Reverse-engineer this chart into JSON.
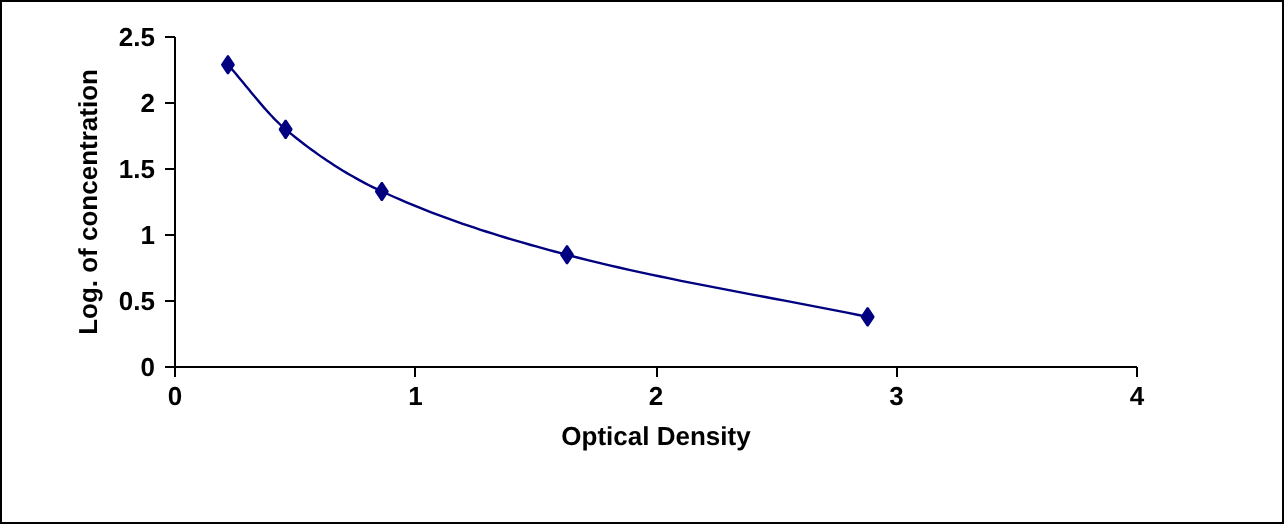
{
  "chart_data": {
    "type": "line",
    "xlabel": "Optical Density",
    "ylabel": "Log. of concentration",
    "x": [
      0.22,
      0.46,
      0.86,
      1.63,
      2.88
    ],
    "series": [
      {
        "color": "#000080",
        "values": [
          2.29,
          1.8,
          1.33,
          0.85,
          0.38
        ]
      }
    ],
    "xlim": [
      0,
      4
    ],
    "xticks": [
      0,
      1,
      2,
      3,
      4
    ],
    "ylim": [
      0,
      2.5
    ],
    "yticks": [
      0,
      0.5,
      1,
      1.5,
      2,
      2.5
    ],
    "marker": "diamond",
    "line_style": "solid",
    "grid": false
  }
}
